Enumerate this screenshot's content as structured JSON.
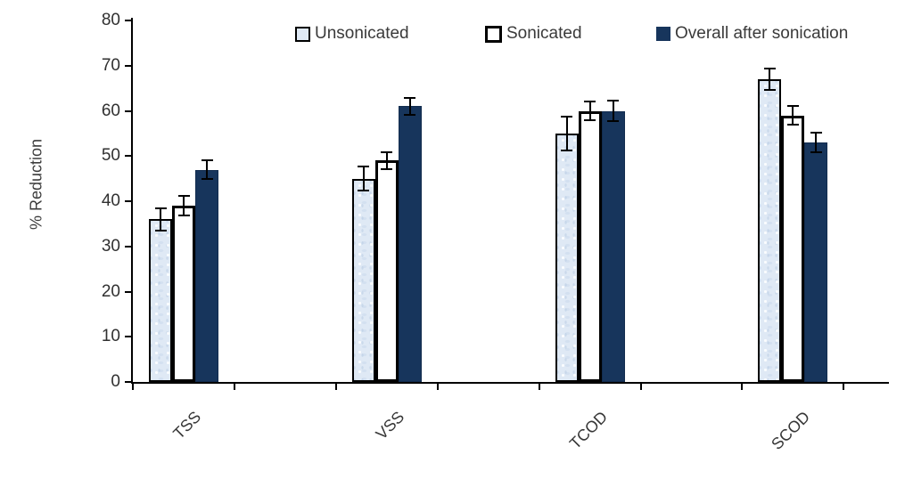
{
  "page": {
    "background": "#ffffff"
  },
  "chart_data": {
    "type": "bar",
    "title": "",
    "xlabel": "",
    "ylabel": "% Reduction",
    "ylim": [
      0,
      80
    ],
    "ytick_step": 10,
    "grid": false,
    "legend_position": "top",
    "error_bars": true,
    "error_bar_color": "#000000",
    "categories": [
      "TSS",
      "VSS",
      "TCOD",
      "SCOD"
    ],
    "series": [
      {
        "name": "Unsonicated",
        "values": [
          36,
          45,
          55,
          67
        ],
        "errors": [
          2.5,
          2.6,
          3.7,
          2.4
        ],
        "fill": "#dfe9f5",
        "border": "#000000",
        "style": "textured"
      },
      {
        "name": "Sonicated",
        "values": [
          39,
          49,
          60,
          59
        ],
        "errors": [
          2.2,
          1.8,
          2.1,
          2.1
        ],
        "fill": "#ffffff",
        "border": "#000000",
        "style": "outlined"
      },
      {
        "name": "Overall after sonication",
        "values": [
          47,
          61,
          60,
          53
        ],
        "errors": [
          2.0,
          1.9,
          2.3,
          2.1
        ],
        "fill": "#17355c",
        "border": "#122c4e",
        "style": "solid"
      }
    ]
  }
}
